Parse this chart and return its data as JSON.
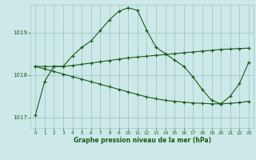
{
  "title": "Graphe pression niveau de la mer (hPa)",
  "background_color": "#cce8e8",
  "grid_color": "#aacccc",
  "line_color": "#1a5c1a",
  "xlim": [
    -0.5,
    23.5
  ],
  "ylim": [
    1016.75,
    1019.65
  ],
  "yticks": [
    1017,
    1018,
    1019
  ],
  "xticks": [
    0,
    1,
    2,
    3,
    4,
    5,
    6,
    7,
    8,
    9,
    10,
    11,
    12,
    13,
    14,
    15,
    16,
    17,
    18,
    19,
    20,
    21,
    22,
    23
  ],
  "series1": [
    1017.05,
    1017.85,
    1018.2,
    1018.2,
    1018.45,
    1018.65,
    1018.8,
    1019.05,
    1019.3,
    1019.5,
    1019.58,
    1019.52,
    1019.05,
    1018.65,
    1018.5,
    1018.35,
    1018.2,
    1017.95,
    1017.65,
    1017.4,
    1017.32,
    1017.5,
    1017.8,
    1018.3
  ],
  "series2": [
    1018.2,
    1018.2,
    1018.2,
    1018.2,
    1018.22,
    1018.25,
    1018.28,
    1018.31,
    1018.34,
    1018.37,
    1018.4,
    1018.42,
    1018.44,
    1018.46,
    1018.48,
    1018.5,
    1018.52,
    1018.54,
    1018.56,
    1018.58,
    1018.6,
    1018.61,
    1018.62,
    1018.63
  ],
  "series3": [
    1018.2,
    1018.14,
    1018.08,
    1018.02,
    1017.96,
    1017.9,
    1017.84,
    1017.78,
    1017.72,
    1017.66,
    1017.6,
    1017.54,
    1017.48,
    1017.44,
    1017.4,
    1017.38,
    1017.36,
    1017.34,
    1017.33,
    1017.32,
    1017.32,
    1017.33,
    1017.35,
    1017.38
  ]
}
